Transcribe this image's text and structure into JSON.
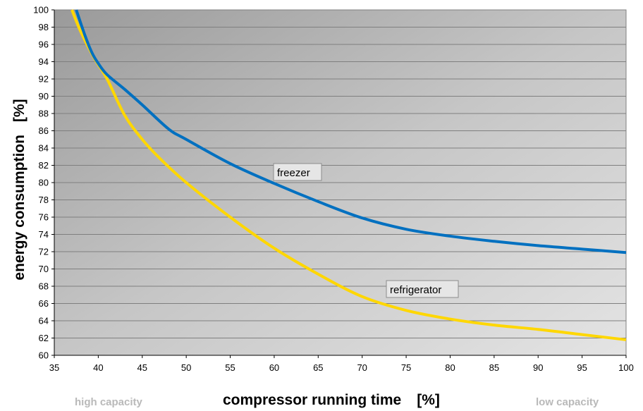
{
  "chart_data": {
    "type": "line",
    "xlabel": "compressor running time",
    "xlabel_unit": "[%]",
    "ylabel": "energy consumption",
    "ylabel_unit": "[%]",
    "x_left_note": "high capacity",
    "x_right_note": "low capacity",
    "xlim": [
      35,
      100
    ],
    "ylim": [
      60,
      100
    ],
    "x_ticks": [
      35,
      40,
      45,
      50,
      55,
      60,
      65,
      70,
      75,
      80,
      85,
      90,
      95,
      100
    ],
    "y_ticks": [
      60,
      62,
      64,
      66,
      68,
      70,
      72,
      74,
      76,
      78,
      80,
      82,
      84,
      86,
      88,
      90,
      92,
      94,
      96,
      98,
      100
    ],
    "grid": true,
    "background": "#c0c0c0",
    "series": [
      {
        "name": "freezer",
        "color": "#0070c0",
        "x": [
          37.5,
          38.5,
          39.3,
          40.0,
          41.0,
          43.0,
          45.0,
          48.0,
          50.0,
          55.0,
          60.0,
          65.0,
          70.0,
          75.0,
          80.0,
          85.0,
          90.0,
          95.0,
          100.0
        ],
        "y": [
          100.0,
          97.0,
          95.0,
          93.8,
          92.5,
          90.8,
          89.0,
          86.2,
          85.0,
          82.2,
          79.9,
          77.8,
          75.9,
          74.6,
          73.8,
          73.2,
          72.7,
          72.3,
          71.9
        ]
      },
      {
        "name": "refrigerator",
        "color": "#ffd700",
        "x": [
          37.0,
          38.0,
          39.5,
          41.0,
          43.0,
          45.0,
          47.0,
          50.0,
          55.0,
          60.0,
          65.0,
          70.0,
          75.0,
          80.0,
          85.0,
          90.0,
          95.0,
          100.0
        ],
        "y": [
          100.0,
          97.5,
          94.5,
          92.0,
          87.8,
          85.0,
          82.8,
          80.0,
          76.0,
          72.4,
          69.4,
          66.8,
          65.2,
          64.2,
          63.5,
          63.0,
          62.4,
          61.8
        ]
      }
    ]
  }
}
